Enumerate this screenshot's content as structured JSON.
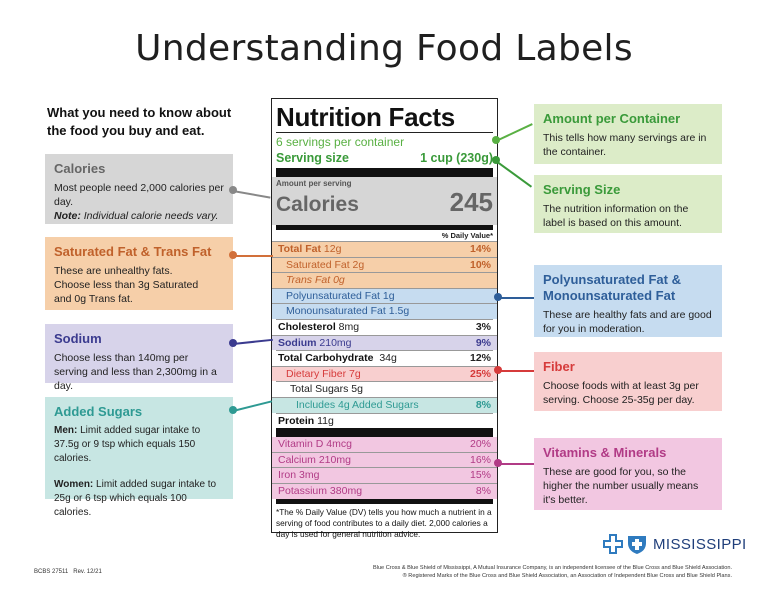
{
  "title": "Understanding Food Labels",
  "intro": "What you need to know about the food you buy and eat.",
  "colors": {
    "green": "#59b043",
    "gray": "#d6d6d6",
    "orange": "#f6cfa9",
    "purple": "#d7d3ea",
    "teal": "#c7e6e3",
    "blue": "#c6dcf0",
    "pink": "#f8cfcf",
    "magenta": "#f2c7e1"
  },
  "left_boxes": {
    "calories": {
      "title": "Calories",
      "body": "Most people need 2,000 calories per day.",
      "note_label": "Note:",
      "note": " Individual calorie needs vary."
    },
    "sat_fat": {
      "title": "Saturated Fat & Trans Fat",
      "body": "These are unhealthy fats. Choose less than 3g Saturated and 0g Trans fat."
    },
    "sodium": {
      "title": "Sodium",
      "body": "Choose less than 140mg per serving and less than 2,300mg in a day."
    },
    "added_sugars": {
      "title": "Added Sugars",
      "men_label": "Men:",
      "men": " Limit added sugar intake to 37.5g or 9 tsp which equals 150 calories.",
      "women_label": "Women:",
      "women": " Limit added sugar intake to 25g or 6 tsp which equals 100 calories."
    }
  },
  "right_boxes": {
    "amount": {
      "title": "Amount per Container",
      "body": "This tells how many servings are in the container."
    },
    "serving": {
      "title": "Serving Size",
      "body": "The nutrition information on the label is based on this amount."
    },
    "poly": {
      "title": "Polyunsaturated Fat & Monounsaturated Fat",
      "body": "These are healthy fats and are good for you in moderation."
    },
    "fiber": {
      "title": "Fiber",
      "body": "Choose foods with at least 3g per serving. Choose 25-35g per day."
    },
    "vitamins": {
      "title": "Vitamins & Minerals",
      "body": "These are good for you, so the higher the number usually means it's better."
    }
  },
  "label": {
    "title": "Nutrition Facts",
    "servings": "6 servings per container",
    "serving_size_label": "Serving size",
    "serving_size_value": "1 cup (230g)",
    "amount_per_serving": "Amount per serving",
    "calories_label": "Calories",
    "calories_value": "245",
    "dv_header": "% Daily Value*",
    "rows": {
      "total_fat": {
        "name": "Total Fat",
        "amount": " 12g",
        "dv": "14%"
      },
      "sat_fat": {
        "name": "Saturated Fat 2g",
        "dv": "10%"
      },
      "trans_fat": {
        "name": "Trans Fat 0g"
      },
      "poly": {
        "name": "Polyunsaturated Fat 1g"
      },
      "mono": {
        "name": "Monounsaturated Fat 1.5g"
      },
      "cholesterol": {
        "name": "Cholesterol",
        "amount": " 8mg",
        "dv": "3%"
      },
      "sodium": {
        "name": "Sodium",
        "amount": " 210mg",
        "dv": "9%"
      },
      "carbs": {
        "name": "Total Carbohydrate",
        "amount": "  34g",
        "dv": "12%"
      },
      "fiber": {
        "name": "Dietary Fiber 7g",
        "dv": "25%"
      },
      "sugars": {
        "name": "Total Sugars 5g"
      },
      "added": {
        "name": "Includes 4g Added Sugars",
        "dv": "8%"
      },
      "protein": {
        "name": "Protein",
        "amount": " 11g"
      },
      "vitd": {
        "name": "Vitamin D 4mcg",
        "dv": "20%"
      },
      "calcium": {
        "name": "Calcium 210mg",
        "dv": "16%"
      },
      "iron": {
        "name": "Iron 3mg",
        "dv": "15%"
      },
      "potassium": {
        "name": "Potassium 380mg",
        "dv": "8%"
      }
    },
    "footnote": "*The % Daily Value (DV) tells you how much a nutrient in a serving of food contributes to a daily diet. 2,000 calories a day is used for general nutrition advice."
  },
  "footer": {
    "code": "BCBS 27511   Rev. 12/21",
    "legal1": "Blue Cross & Blue Shield of Mississippi, A Mutual Insurance Company, is an independent licensee of the Blue Cross and Blue Shield Association.",
    "legal2": "® Registered Marks of the Blue Cross and Blue Shield Association, an Association of Independent Blue Cross and Blue Shield Plans.",
    "brand": "MISSISSIPPI"
  }
}
